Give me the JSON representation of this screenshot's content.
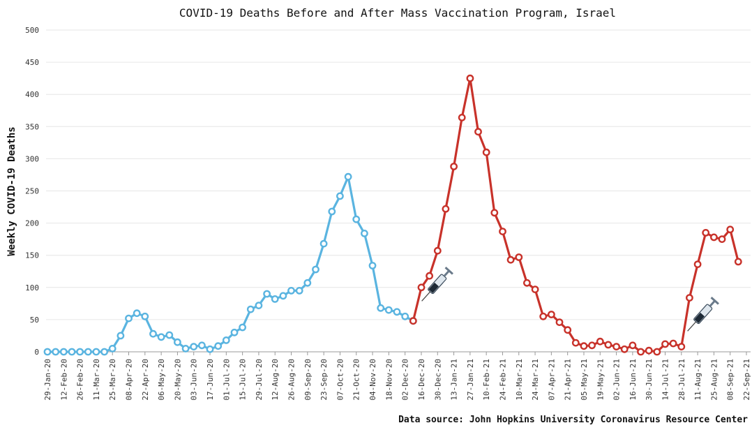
{
  "chart_data": {
    "type": "line",
    "title": "COVID-19 Deaths Before and After Mass Vaccination Program, Israel",
    "xlabel": "",
    "ylabel": "Weekly COVID-19 Deaths",
    "source": "Data source: John Hopkins University Coronavirus Resource Center",
    "ylim": [
      0,
      500
    ],
    "yticks": [
      0,
      50,
      100,
      150,
      200,
      250,
      300,
      350,
      400,
      450,
      500
    ],
    "grid": true,
    "x_tick_labels": [
      "29-Jan-20",
      "12-Feb-20",
      "26-Feb-20",
      "11-Mar-20",
      "25-Mar-20",
      "08-Apr-20",
      "22-Apr-20",
      "06-May-20",
      "20-May-20",
      "03-Jun-20",
      "17-Jun-20",
      "01-Jul-20",
      "15-Jul-20",
      "29-Jul-20",
      "12-Aug-20",
      "26-Aug-20",
      "09-Sep-20",
      "23-Sep-20",
      "07-Oct-20",
      "21-Oct-20",
      "04-Nov-20",
      "18-Nov-20",
      "02-Dec-20",
      "16-Dec-20",
      "30-Dec-20",
      "13-Jan-21",
      "27-Jan-21",
      "10-Feb-21",
      "24-Feb-21",
      "10-Mar-21",
      "24-Mar-21",
      "07-Apr-21",
      "21-Apr-21",
      "05-May-21",
      "19-May-21",
      "02-Jun-21",
      "16-Jun-21",
      "30-Jun-21",
      "14-Jul-21",
      "28-Jul-21",
      "11-Aug-21",
      "25-Aug-21",
      "08-Sep-21",
      "22-Sep-21"
    ],
    "series": [
      {
        "segment": "before",
        "color": "#5ab4e0",
        "values": [
          0,
          0,
          0,
          0,
          0,
          0,
          0,
          0,
          5,
          25,
          52,
          60,
          55,
          28,
          23,
          26,
          15,
          5,
          8,
          10,
          4,
          9,
          18,
          30,
          38,
          66,
          72,
          90,
          82,
          87,
          95,
          95,
          107,
          128,
          168,
          218,
          242,
          272,
          206,
          184,
          134,
          68,
          65,
          62,
          55,
          48
        ]
      },
      {
        "segment": "after",
        "color": "#c8322a",
        "start_index": 45,
        "values": [
          48,
          100,
          118,
          157,
          222,
          288,
          364,
          425,
          342,
          310,
          216,
          187,
          143,
          147,
          107,
          97,
          55,
          58,
          46,
          34,
          14,
          9,
          10,
          16,
          11,
          8,
          4,
          10,
          0,
          2,
          0,
          12,
          13,
          8,
          84,
          136,
          185,
          178,
          175,
          190,
          140
        ]
      }
    ],
    "annotations": [
      "syringe-icon",
      "syringe-icon"
    ]
  }
}
